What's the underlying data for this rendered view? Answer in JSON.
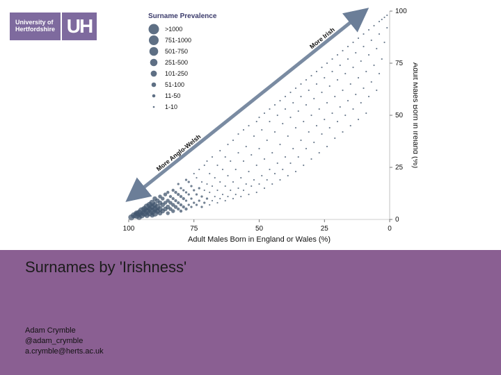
{
  "logo": {
    "line1": "University of",
    "line2": "Hertfordshire",
    "mark": "UH"
  },
  "title": "Surnames by 'Irishness'",
  "author": {
    "name": "Adam Crymble",
    "handle": "@adam_crymble",
    "email": "a.crymble@herts.ac.uk"
  },
  "footer_color": "#8a5f92",
  "chart": {
    "type": "scatter",
    "background_color": "#ffffff",
    "text_color": "#111111",
    "point_color": "#42566e",
    "axis_color": "#999999",
    "tick_color": "#555555",
    "arrow_color": "#6b7e98",
    "legend_title": "Surname Prevalence",
    "legend_title_color": "#3b3b6b",
    "legend_fontsize": 9,
    "xlabel": "Adult Males Born in England or Wales (%)",
    "ylabel": "Adult Males Born in Ireland (%)",
    "xlim": [
      100,
      0
    ],
    "ylim": [
      0,
      100
    ],
    "xtick_labels": [
      100,
      75,
      50,
      25,
      0
    ],
    "ytick_labels": [
      100,
      75,
      50,
      25,
      0
    ],
    "arrow_labels": {
      "low": "More Anglo-Welsh",
      "high": "More Irish"
    },
    "legend_bins": [
      {
        "label": ">1000",
        "radius": 7.5
      },
      {
        "label": "751-1000",
        "radius": 7.0
      },
      {
        "label": "501-750",
        "radius": 6.3
      },
      {
        "label": "251-500",
        "radius": 5.3
      },
      {
        "label": "101-250",
        "radius": 4.4
      },
      {
        "label": "51-100",
        "radius": 3.3
      },
      {
        "label": "11-50",
        "radius": 2.3
      },
      {
        "label": "1-10",
        "radius": 1.3
      }
    ],
    "points": [
      {
        "x": 99,
        "y": 1,
        "r": 8
      },
      {
        "x": 98,
        "y": 2,
        "r": 8
      },
      {
        "x": 97,
        "y": 2,
        "r": 9
      },
      {
        "x": 97,
        "y": 3,
        "r": 7
      },
      {
        "x": 96,
        "y": 1,
        "r": 7
      },
      {
        "x": 96,
        "y": 3,
        "r": 9
      },
      {
        "x": 95,
        "y": 2,
        "r": 8
      },
      {
        "x": 95,
        "y": 4,
        "r": 10
      },
      {
        "x": 94,
        "y": 3,
        "r": 9
      },
      {
        "x": 94,
        "y": 5,
        "r": 8
      },
      {
        "x": 93,
        "y": 2,
        "r": 7
      },
      {
        "x": 93,
        "y": 4,
        "r": 8
      },
      {
        "x": 93,
        "y": 6,
        "r": 9
      },
      {
        "x": 92,
        "y": 3,
        "r": 8
      },
      {
        "x": 92,
        "y": 5,
        "r": 7
      },
      {
        "x": 92,
        "y": 7,
        "r": 8
      },
      {
        "x": 91,
        "y": 2,
        "r": 6
      },
      {
        "x": 91,
        "y": 4,
        "r": 9
      },
      {
        "x": 91,
        "y": 6,
        "r": 7
      },
      {
        "x": 91,
        "y": 8,
        "r": 8
      },
      {
        "x": 90,
        "y": 3,
        "r": 9
      },
      {
        "x": 90,
        "y": 5,
        "r": 8
      },
      {
        "x": 90,
        "y": 7,
        "r": 7
      },
      {
        "x": 90,
        "y": 10,
        "r": 6
      },
      {
        "x": 89,
        "y": 4,
        "r": 7
      },
      {
        "x": 89,
        "y": 6,
        "r": 8
      },
      {
        "x": 89,
        "y": 9,
        "r": 6
      },
      {
        "x": 88,
        "y": 3,
        "r": 6
      },
      {
        "x": 88,
        "y": 5,
        "r": 7
      },
      {
        "x": 88,
        "y": 8,
        "r": 6
      },
      {
        "x": 88,
        "y": 11,
        "r": 5
      },
      {
        "x": 87,
        "y": 4,
        "r": 6
      },
      {
        "x": 87,
        "y": 7,
        "r": 6
      },
      {
        "x": 87,
        "y": 10,
        "r": 5
      },
      {
        "x": 86,
        "y": 5,
        "r": 6
      },
      {
        "x": 86,
        "y": 8,
        "r": 5
      },
      {
        "x": 86,
        "y": 12,
        "r": 5
      },
      {
        "x": 85,
        "y": 3,
        "r": 5
      },
      {
        "x": 85,
        "y": 6,
        "r": 6
      },
      {
        "x": 85,
        "y": 9,
        "r": 5
      },
      {
        "x": 85,
        "y": 13,
        "r": 4
      },
      {
        "x": 84,
        "y": 5,
        "r": 5
      },
      {
        "x": 84,
        "y": 8,
        "r": 5
      },
      {
        "x": 84,
        "y": 11,
        "r": 4
      },
      {
        "x": 83,
        "y": 4,
        "r": 5
      },
      {
        "x": 83,
        "y": 7,
        "r": 5
      },
      {
        "x": 83,
        "y": 10,
        "r": 4
      },
      {
        "x": 83,
        "y": 14,
        "r": 4
      },
      {
        "x": 82,
        "y": 6,
        "r": 5
      },
      {
        "x": 82,
        "y": 9,
        "r": 4
      },
      {
        "x": 82,
        "y": 13,
        "r": 4
      },
      {
        "x": 81,
        "y": 5,
        "r": 4
      },
      {
        "x": 81,
        "y": 8,
        "r": 4
      },
      {
        "x": 81,
        "y": 12,
        "r": 4
      },
      {
        "x": 81,
        "y": 17,
        "r": 3
      },
      {
        "x": 80,
        "y": 4,
        "r": 4
      },
      {
        "x": 80,
        "y": 7,
        "r": 4
      },
      {
        "x": 80,
        "y": 11,
        "r": 4
      },
      {
        "x": 80,
        "y": 15,
        "r": 3
      },
      {
        "x": 79,
        "y": 6,
        "r": 4
      },
      {
        "x": 79,
        "y": 10,
        "r": 4
      },
      {
        "x": 79,
        "y": 14,
        "r": 3
      },
      {
        "x": 78,
        "y": 5,
        "r": 4
      },
      {
        "x": 78,
        "y": 9,
        "r": 3
      },
      {
        "x": 78,
        "y": 13,
        "r": 3
      },
      {
        "x": 78,
        "y": 19,
        "r": 3
      },
      {
        "x": 77,
        "y": 7,
        "r": 3
      },
      {
        "x": 77,
        "y": 12,
        "r": 3
      },
      {
        "x": 77,
        "y": 18,
        "r": 3
      },
      {
        "x": 76,
        "y": 6,
        "r": 3
      },
      {
        "x": 76,
        "y": 10,
        "r": 3
      },
      {
        "x": 76,
        "y": 16,
        "r": 3
      },
      {
        "x": 75,
        "y": 8,
        "r": 3
      },
      {
        "x": 75,
        "y": 14,
        "r": 3
      },
      {
        "x": 75,
        "y": 22,
        "r": 2
      },
      {
        "x": 74,
        "y": 7,
        "r": 3
      },
      {
        "x": 74,
        "y": 12,
        "r": 3
      },
      {
        "x": 74,
        "y": 20,
        "r": 2
      },
      {
        "x": 73,
        "y": 9,
        "r": 3
      },
      {
        "x": 73,
        "y": 15,
        "r": 3
      },
      {
        "x": 73,
        "y": 24,
        "r": 2
      },
      {
        "x": 72,
        "y": 6,
        "r": 3
      },
      {
        "x": 72,
        "y": 11,
        "r": 3
      },
      {
        "x": 72,
        "y": 18,
        "r": 2
      },
      {
        "x": 71,
        "y": 8,
        "r": 3
      },
      {
        "x": 71,
        "y": 14,
        "r": 2
      },
      {
        "x": 71,
        "y": 26,
        "r": 2
      },
      {
        "x": 70,
        "y": 10,
        "r": 3
      },
      {
        "x": 70,
        "y": 17,
        "r": 2
      },
      {
        "x": 70,
        "y": 28,
        "r": 2
      },
      {
        "x": 69,
        "y": 7,
        "r": 2
      },
      {
        "x": 69,
        "y": 13,
        "r": 2
      },
      {
        "x": 69,
        "y": 22,
        "r": 2
      },
      {
        "x": 68,
        "y": 9,
        "r": 2
      },
      {
        "x": 68,
        "y": 16,
        "r": 2
      },
      {
        "x": 68,
        "y": 30,
        "r": 2
      },
      {
        "x": 67,
        "y": 11,
        "r": 2
      },
      {
        "x": 67,
        "y": 20,
        "r": 2
      },
      {
        "x": 66,
        "y": 8,
        "r": 2
      },
      {
        "x": 66,
        "y": 14,
        "r": 2
      },
      {
        "x": 66,
        "y": 26,
        "r": 2
      },
      {
        "x": 65,
        "y": 10,
        "r": 2
      },
      {
        "x": 65,
        "y": 18,
        "r": 2
      },
      {
        "x": 65,
        "y": 33,
        "r": 2
      },
      {
        "x": 64,
        "y": 12,
        "r": 2
      },
      {
        "x": 64,
        "y": 24,
        "r": 2
      },
      {
        "x": 63,
        "y": 9,
        "r": 2
      },
      {
        "x": 63,
        "y": 16,
        "r": 2
      },
      {
        "x": 63,
        "y": 30,
        "r": 2
      },
      {
        "x": 62,
        "y": 11,
        "r": 2
      },
      {
        "x": 62,
        "y": 21,
        "r": 2
      },
      {
        "x": 62,
        "y": 36,
        "r": 2
      },
      {
        "x": 61,
        "y": 14,
        "r": 2
      },
      {
        "x": 61,
        "y": 28,
        "r": 2
      },
      {
        "x": 60,
        "y": 10,
        "r": 2
      },
      {
        "x": 60,
        "y": 18,
        "r": 2
      },
      {
        "x": 60,
        "y": 38,
        "r": 2
      },
      {
        "x": 59,
        "y": 12,
        "r": 2
      },
      {
        "x": 59,
        "y": 24,
        "r": 2
      },
      {
        "x": 58,
        "y": 15,
        "r": 2
      },
      {
        "x": 58,
        "y": 32,
        "r": 2
      },
      {
        "x": 58,
        "y": 41,
        "r": 2
      },
      {
        "x": 57,
        "y": 11,
        "r": 2
      },
      {
        "x": 57,
        "y": 20,
        "r": 2
      },
      {
        "x": 56,
        "y": 14,
        "r": 2
      },
      {
        "x": 56,
        "y": 28,
        "r": 2
      },
      {
        "x": 56,
        "y": 43,
        "r": 2
      },
      {
        "x": 55,
        "y": 17,
        "r": 2
      },
      {
        "x": 55,
        "y": 35,
        "r": 2
      },
      {
        "x": 54,
        "y": 12,
        "r": 2
      },
      {
        "x": 54,
        "y": 23,
        "r": 2
      },
      {
        "x": 54,
        "y": 45,
        "r": 2
      },
      {
        "x": 53,
        "y": 16,
        "r": 2
      },
      {
        "x": 53,
        "y": 31,
        "r": 2
      },
      {
        "x": 52,
        "y": 19,
        "r": 2
      },
      {
        "x": 52,
        "y": 40,
        "r": 2
      },
      {
        "x": 51,
        "y": 13,
        "r": 2
      },
      {
        "x": 51,
        "y": 26,
        "r": 2
      },
      {
        "x": 51,
        "y": 47,
        "r": 2
      },
      {
        "x": 50,
        "y": 17,
        "r": 2
      },
      {
        "x": 50,
        "y": 34,
        "r": 2
      },
      {
        "x": 50,
        "y": 49,
        "r": 2
      },
      {
        "x": 49,
        "y": 21,
        "r": 2
      },
      {
        "x": 49,
        "y": 43,
        "r": 2
      },
      {
        "x": 48,
        "y": 15,
        "r": 2
      },
      {
        "x": 48,
        "y": 29,
        "r": 2
      },
      {
        "x": 48,
        "y": 51,
        "r": 2
      },
      {
        "x": 47,
        "y": 19,
        "r": 2
      },
      {
        "x": 47,
        "y": 38,
        "r": 2
      },
      {
        "x": 46,
        "y": 24,
        "r": 2
      },
      {
        "x": 46,
        "y": 47,
        "r": 2
      },
      {
        "x": 46,
        "y": 53,
        "r": 2
      },
      {
        "x": 45,
        "y": 17,
        "r": 2
      },
      {
        "x": 45,
        "y": 32,
        "r": 2
      },
      {
        "x": 44,
        "y": 22,
        "r": 2
      },
      {
        "x": 44,
        "y": 42,
        "r": 2
      },
      {
        "x": 44,
        "y": 55,
        "r": 2
      },
      {
        "x": 43,
        "y": 27,
        "r": 2
      },
      {
        "x": 43,
        "y": 50,
        "r": 2
      },
      {
        "x": 42,
        "y": 19,
        "r": 2
      },
      {
        "x": 42,
        "y": 36,
        "r": 2
      },
      {
        "x": 42,
        "y": 57,
        "r": 2
      },
      {
        "x": 41,
        "y": 24,
        "r": 2
      },
      {
        "x": 41,
        "y": 46,
        "r": 2
      },
      {
        "x": 40,
        "y": 30,
        "r": 2
      },
      {
        "x": 40,
        "y": 53,
        "r": 2
      },
      {
        "x": 40,
        "y": 59,
        "r": 2
      },
      {
        "x": 39,
        "y": 21,
        "r": 2
      },
      {
        "x": 39,
        "y": 40,
        "r": 2
      },
      {
        "x": 38,
        "y": 27,
        "r": 2
      },
      {
        "x": 38,
        "y": 49,
        "r": 2
      },
      {
        "x": 38,
        "y": 61,
        "r": 2
      },
      {
        "x": 37,
        "y": 34,
        "r": 2
      },
      {
        "x": 37,
        "y": 56,
        "r": 2
      },
      {
        "x": 36,
        "y": 23,
        "r": 2
      },
      {
        "x": 36,
        "y": 44,
        "r": 2
      },
      {
        "x": 36,
        "y": 63,
        "r": 2
      },
      {
        "x": 35,
        "y": 30,
        "r": 2
      },
      {
        "x": 35,
        "y": 52,
        "r": 2
      },
      {
        "x": 34,
        "y": 38,
        "r": 2
      },
      {
        "x": 34,
        "y": 59,
        "r": 2
      },
      {
        "x": 34,
        "y": 65,
        "r": 2
      },
      {
        "x": 33,
        "y": 26,
        "r": 2
      },
      {
        "x": 33,
        "y": 47,
        "r": 2
      },
      {
        "x": 32,
        "y": 34,
        "r": 2
      },
      {
        "x": 32,
        "y": 55,
        "r": 2
      },
      {
        "x": 32,
        "y": 67,
        "r": 2
      },
      {
        "x": 31,
        "y": 42,
        "r": 2
      },
      {
        "x": 31,
        "y": 62,
        "r": 2
      },
      {
        "x": 30,
        "y": 29,
        "r": 2
      },
      {
        "x": 30,
        "y": 50,
        "r": 2
      },
      {
        "x": 30,
        "y": 69,
        "r": 2
      },
      {
        "x": 29,
        "y": 37,
        "r": 2
      },
      {
        "x": 29,
        "y": 58,
        "r": 2
      },
      {
        "x": 28,
        "y": 45,
        "r": 2
      },
      {
        "x": 28,
        "y": 65,
        "r": 2
      },
      {
        "x": 28,
        "y": 71,
        "r": 2
      },
      {
        "x": 27,
        "y": 32,
        "r": 2
      },
      {
        "x": 27,
        "y": 53,
        "r": 2
      },
      {
        "x": 26,
        "y": 41,
        "r": 2
      },
      {
        "x": 26,
        "y": 61,
        "r": 2
      },
      {
        "x": 26,
        "y": 73,
        "r": 2
      },
      {
        "x": 25,
        "y": 48,
        "r": 2
      },
      {
        "x": 25,
        "y": 68,
        "r": 2
      },
      {
        "x": 24,
        "y": 35,
        "r": 2
      },
      {
        "x": 24,
        "y": 56,
        "r": 2
      },
      {
        "x": 24,
        "y": 75,
        "r": 2
      },
      {
        "x": 23,
        "y": 44,
        "r": 2
      },
      {
        "x": 23,
        "y": 64,
        "r": 2
      },
      {
        "x": 22,
        "y": 51,
        "r": 2
      },
      {
        "x": 22,
        "y": 71,
        "r": 2
      },
      {
        "x": 22,
        "y": 77,
        "r": 2
      },
      {
        "x": 21,
        "y": 39,
        "r": 2
      },
      {
        "x": 21,
        "y": 59,
        "r": 2
      },
      {
        "x": 20,
        "y": 47,
        "r": 2
      },
      {
        "x": 20,
        "y": 67,
        "r": 2
      },
      {
        "x": 20,
        "y": 79,
        "r": 2
      },
      {
        "x": 19,
        "y": 54,
        "r": 2
      },
      {
        "x": 19,
        "y": 74,
        "r": 2
      },
      {
        "x": 18,
        "y": 42,
        "r": 2
      },
      {
        "x": 18,
        "y": 62,
        "r": 2
      },
      {
        "x": 18,
        "y": 81,
        "r": 2
      },
      {
        "x": 17,
        "y": 50,
        "r": 2
      },
      {
        "x": 17,
        "y": 70,
        "r": 2
      },
      {
        "x": 16,
        "y": 57,
        "r": 2
      },
      {
        "x": 16,
        "y": 77,
        "r": 2
      },
      {
        "x": 16,
        "y": 83,
        "r": 2
      },
      {
        "x": 15,
        "y": 45,
        "r": 2
      },
      {
        "x": 15,
        "y": 65,
        "r": 2
      },
      {
        "x": 14,
        "y": 53,
        "r": 2
      },
      {
        "x": 14,
        "y": 73,
        "r": 2
      },
      {
        "x": 14,
        "y": 85,
        "r": 2
      },
      {
        "x": 13,
        "y": 60,
        "r": 2
      },
      {
        "x": 13,
        "y": 80,
        "r": 2
      },
      {
        "x": 12,
        "y": 48,
        "r": 2
      },
      {
        "x": 12,
        "y": 68,
        "r": 2
      },
      {
        "x": 12,
        "y": 87,
        "r": 2
      },
      {
        "x": 11,
        "y": 56,
        "r": 2
      },
      {
        "x": 11,
        "y": 76,
        "r": 2
      },
      {
        "x": 10,
        "y": 63,
        "r": 2
      },
      {
        "x": 10,
        "y": 83,
        "r": 2
      },
      {
        "x": 10,
        "y": 89,
        "r": 2
      },
      {
        "x": 9,
        "y": 51,
        "r": 2
      },
      {
        "x": 9,
        "y": 71,
        "r": 2
      },
      {
        "x": 8,
        "y": 59,
        "r": 2
      },
      {
        "x": 8,
        "y": 79,
        "r": 2
      },
      {
        "x": 8,
        "y": 91,
        "r": 2
      },
      {
        "x": 7,
        "y": 66,
        "r": 2
      },
      {
        "x": 7,
        "y": 86,
        "r": 2
      },
      {
        "x": 6,
        "y": 74,
        "r": 2
      },
      {
        "x": 6,
        "y": 93,
        "r": 2
      },
      {
        "x": 5,
        "y": 62,
        "r": 2
      },
      {
        "x": 5,
        "y": 82,
        "r": 2
      },
      {
        "x": 4,
        "y": 70,
        "r": 2
      },
      {
        "x": 4,
        "y": 89,
        "r": 2
      },
      {
        "x": 4,
        "y": 95,
        "r": 2
      },
      {
        "x": 3,
        "y": 77,
        "r": 2
      },
      {
        "x": 3,
        "y": 96,
        "r": 2
      },
      {
        "x": 2,
        "y": 85,
        "r": 2
      },
      {
        "x": 2,
        "y": 97,
        "r": 2
      },
      {
        "x": 1,
        "y": 92,
        "r": 2
      },
      {
        "x": 1,
        "y": 98,
        "r": 2
      }
    ]
  }
}
